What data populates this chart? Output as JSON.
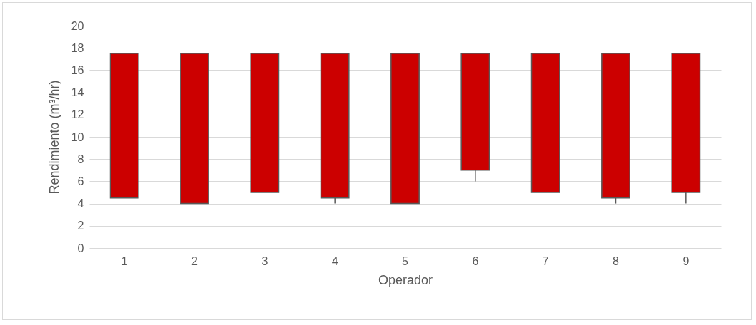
{
  "chart_data": {
    "type": "candlestick",
    "xlabel": "Operador",
    "ylabel": "Rendimiento (m³/hr)",
    "categories": [
      "1",
      "2",
      "3",
      "4",
      "5",
      "6",
      "7",
      "8",
      "9"
    ],
    "ohlc": [
      [
        17.5,
        17.5,
        4.5,
        4.5
      ],
      [
        17.5,
        17.5,
        4,
        4
      ],
      [
        17.5,
        17.5,
        5,
        5
      ],
      [
        17.5,
        17.5,
        4,
        4.5
      ],
      [
        17.5,
        17.5,
        4,
        4
      ],
      [
        17.5,
        17.5,
        6,
        7
      ],
      [
        17.5,
        17.5,
        5,
        5
      ],
      [
        17.5,
        17.5,
        4,
        4.5
      ],
      [
        17.5,
        17.5,
        4,
        5
      ]
    ],
    "color": "#cc0000",
    "ylim": [
      0,
      20
    ],
    "yticks": [
      0,
      2,
      4,
      6,
      8,
      10,
      12,
      14,
      16,
      18,
      20
    ],
    "grid": "y"
  }
}
